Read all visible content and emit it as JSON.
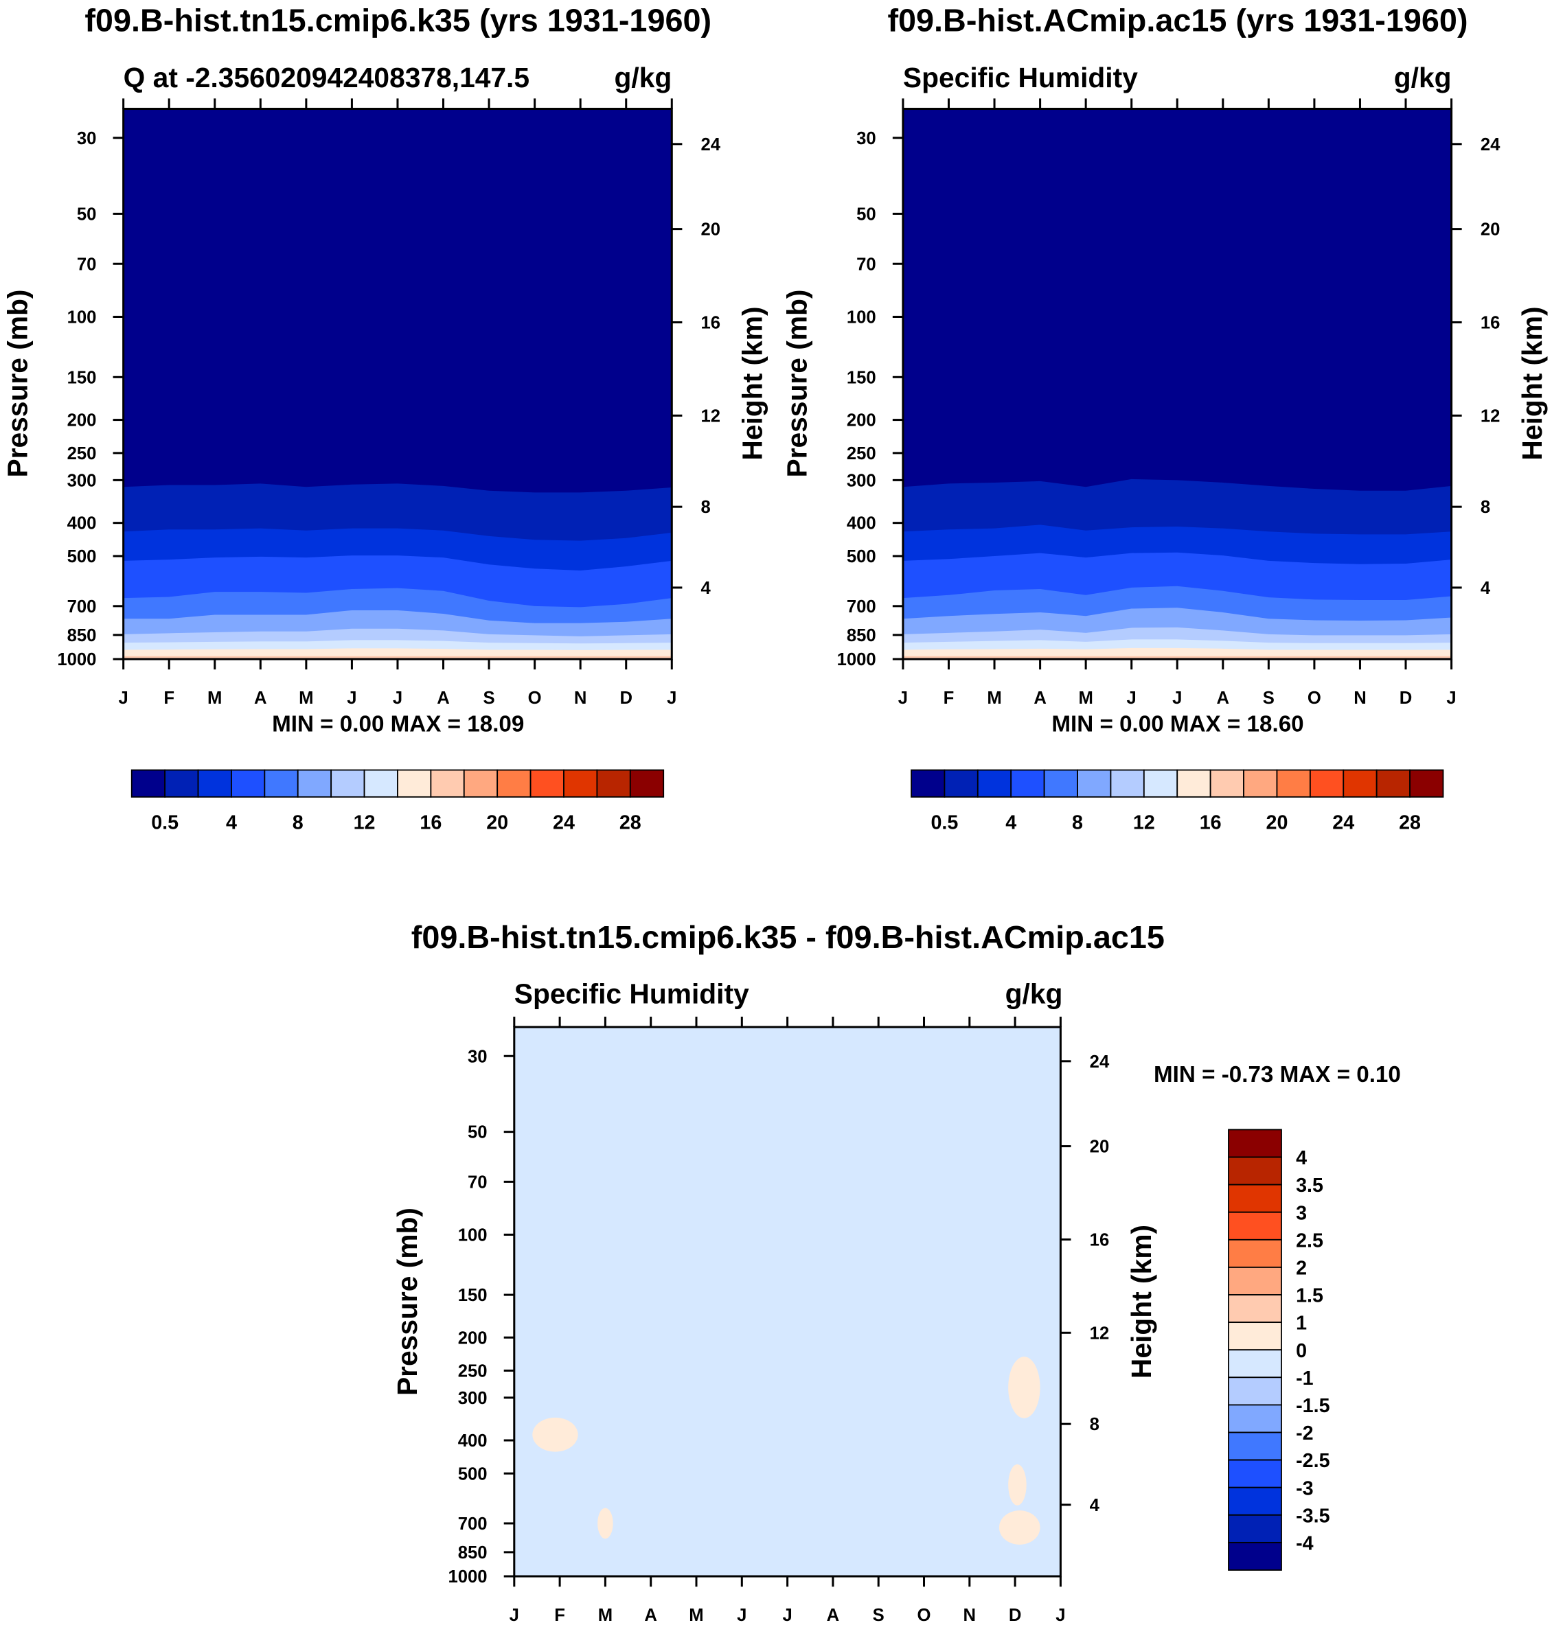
{
  "chart_data": [
    {
      "type": "heatmap",
      "title": "f09.B-hist.tn15.cmip6.k35 (yrs 1931-1960)",
      "subtitle_left": "Q at -2.356020942408378,147.5",
      "subtitle_right": "g/kg",
      "ylabel": "Pressure (mb)",
      "ylabel_right": "Height (km)",
      "minmax": "MIN =    0.00 MAX =  18.09",
      "x_ticks": [
        "J",
        "F",
        "M",
        "A",
        "M",
        "J",
        "J",
        "A",
        "S",
        "O",
        "N",
        "D",
        "J"
      ],
      "y_ticks": [
        "30",
        "50",
        "70",
        "100",
        "150",
        "200",
        "250",
        "300",
        "400",
        "500",
        "700",
        "850",
        "1000"
      ],
      "y_right_ticks": [
        "24",
        "20",
        "16",
        "12",
        "8",
        "4"
      ],
      "ylim": [
        1000,
        25
      ],
      "contour_boundaries_mb": [
        [
          314,
          310,
          310,
          307,
          314,
          309,
          307,
          312,
          322,
          326,
          326,
          322,
          315
        ],
        [
          424,
          418,
          418,
          415,
          421,
          415,
          415,
          421,
          437,
          448,
          451,
          443,
          427
        ],
        [
          516,
          512,
          505,
          502,
          505,
          498,
          498,
          505,
          529,
          544,
          551,
          536,
          516
        ],
        [
          663,
          658,
          636,
          636,
          640,
          624,
          620,
          632,
          675,
          700,
          705,
          690,
          663
        ],
        [
          762,
          762,
          742,
          742,
          742,
          720,
          720,
          737,
          771,
          785,
          785,
          778,
          762
        ],
        [
          846,
          840,
          835,
          830,
          830,
          815,
          815,
          825,
          846,
          852,
          858,
          852,
          846
        ],
        [
          895,
          893,
          890,
          888,
          888,
          880,
          880,
          885,
          895,
          898,
          900,
          898,
          895
        ],
        [
          939,
          938,
          936,
          935,
          935,
          930,
          930,
          933,
          939,
          940,
          941,
          940,
          939
        ],
        [
          980,
          980,
          980,
          980,
          980,
          980,
          980,
          980,
          980,
          980,
          980,
          980,
          980
        ]
      ],
      "colorbar": {
        "colors": [
          "#00008c",
          "#0021b5",
          "#0033dd",
          "#1e50ff",
          "#4078ff",
          "#80a8ff",
          "#b4ccff",
          "#d6e8ff",
          "#ffebd9",
          "#ffcbb0",
          "#ffa880",
          "#ff7d45",
          "#ff5020",
          "#e03500",
          "#b82500",
          "#8b0000"
        ],
        "labels": [
          "0.5",
          "4",
          "8",
          "12",
          "16",
          "20",
          "24",
          "28"
        ]
      }
    },
    {
      "type": "heatmap",
      "title": "f09.B-hist.ACmip.ac15 (yrs 1931-1960)",
      "subtitle_left": "Specific Humidity",
      "subtitle_right": "g/kg",
      "ylabel": "Pressure (mb)",
      "ylabel_right": "Height (km)",
      "minmax": "MIN =    0.00 MAX =  18.60",
      "x_ticks": [
        "J",
        "F",
        "M",
        "A",
        "M",
        "J",
        "J",
        "A",
        "S",
        "O",
        "N",
        "D",
        "J"
      ],
      "y_ticks": [
        "30",
        "50",
        "70",
        "100",
        "150",
        "200",
        "250",
        "300",
        "400",
        "500",
        "700",
        "850",
        "1000"
      ],
      "y_right_ticks": [
        "24",
        "20",
        "16",
        "12",
        "8",
        "4"
      ],
      "ylim": [
        1000,
        25
      ],
      "contour_boundaries_mb": [
        [
          314,
          307,
          305,
          302,
          314,
          298,
          300,
          305,
          312,
          318,
          322,
          322,
          312
        ],
        [
          424,
          418,
          415,
          405,
          421,
          412,
          410,
          415,
          424,
          430,
          432,
          432,
          424
        ],
        [
          516,
          510,
          500,
          490,
          505,
          490,
          488,
          498,
          516,
          524,
          528,
          526,
          512
        ],
        [
          663,
          650,
          630,
          624,
          650,
          618,
          612,
          632,
          660,
          670,
          672,
          672,
          655
        ],
        [
          762,
          748,
          738,
          730,
          748,
          712,
          708,
          730,
          762,
          770,
          772,
          770,
          756
        ],
        [
          846,
          838,
          830,
          820,
          838,
          810,
          808,
          825,
          846,
          852,
          852,
          852,
          846
        ],
        [
          895,
          890,
          885,
          880,
          890,
          876,
          876,
          884,
          895,
          898,
          898,
          898,
          895
        ],
        [
          939,
          936,
          935,
          932,
          936,
          928,
          928,
          932,
          939,
          940,
          940,
          940,
          939
        ],
        [
          980,
          980,
          980,
          980,
          980,
          980,
          980,
          980,
          980,
          980,
          980,
          980,
          980
        ]
      ],
      "colorbar": {
        "colors": [
          "#00008c",
          "#0021b5",
          "#0033dd",
          "#1e50ff",
          "#4078ff",
          "#80a8ff",
          "#b4ccff",
          "#d6e8ff",
          "#ffebd9",
          "#ffcbb0",
          "#ffa880",
          "#ff7d45",
          "#ff5020",
          "#e03500",
          "#b82500",
          "#8b0000"
        ],
        "labels": [
          "0.5",
          "4",
          "8",
          "12",
          "16",
          "20",
          "24",
          "28"
        ]
      }
    },
    {
      "type": "heatmap",
      "title": "f09.B-hist.tn15.cmip6.k35 - f09.B-hist.ACmip.ac15",
      "subtitle_left": "Specific Humidity",
      "subtitle_right": "g/kg",
      "ylabel": "Pressure (mb)",
      "ylabel_right": "Height (km)",
      "minmax": "MIN =  -0.73 MAX =   0.10",
      "x_ticks": [
        "J",
        "F",
        "M",
        "A",
        "M",
        "J",
        "J",
        "A",
        "S",
        "O",
        "N",
        "D",
        "J"
      ],
      "y_ticks": [
        "30",
        "50",
        "70",
        "100",
        "150",
        "200",
        "250",
        "300",
        "400",
        "500",
        "700",
        "850",
        "1000"
      ],
      "y_right_ticks": [
        "24",
        "20",
        "16",
        "12",
        "8",
        "4"
      ],
      "ylim": [
        1000,
        25
      ],
      "background_color": "#d6e8ff",
      "positive_regions": [
        {
          "month": 0.9,
          "pressure_mb": 385,
          "dmonth": 0.5,
          "dlogp": 0.05,
          "color": "#ffebd9"
        },
        {
          "month": 2.0,
          "pressure_mb": 700,
          "dmonth": 0.17,
          "dlogp": 0.045,
          "color": "#ffebd9"
        },
        {
          "month": 11.2,
          "pressure_mb": 280,
          "dmonth": 0.35,
          "dlogp": 0.09,
          "color": "#ffebd9"
        },
        {
          "month": 11.05,
          "pressure_mb": 540,
          "dmonth": 0.2,
          "dlogp": 0.06,
          "color": "#ffebd9"
        },
        {
          "month": 11.1,
          "pressure_mb": 720,
          "dmonth": 0.45,
          "dlogp": 0.05,
          "color": "#ffebd9"
        }
      ],
      "colorbar": {
        "colors": [
          "#8b0000",
          "#b82500",
          "#e03500",
          "#ff5020",
          "#ff7d45",
          "#ffa880",
          "#ffcbb0",
          "#ffebd9",
          "#d6e8ff",
          "#b4ccff",
          "#80a8ff",
          "#4078ff",
          "#1e50ff",
          "#0033dd",
          "#0021b5",
          "#00008c"
        ],
        "labels": [
          "4",
          "3.5",
          "3",
          "2.5",
          "2",
          "1.5",
          "1",
          "0",
          "-1",
          "-1.5",
          "-2",
          "-2.5",
          "-3",
          "-3.5",
          "-4"
        ]
      }
    }
  ]
}
